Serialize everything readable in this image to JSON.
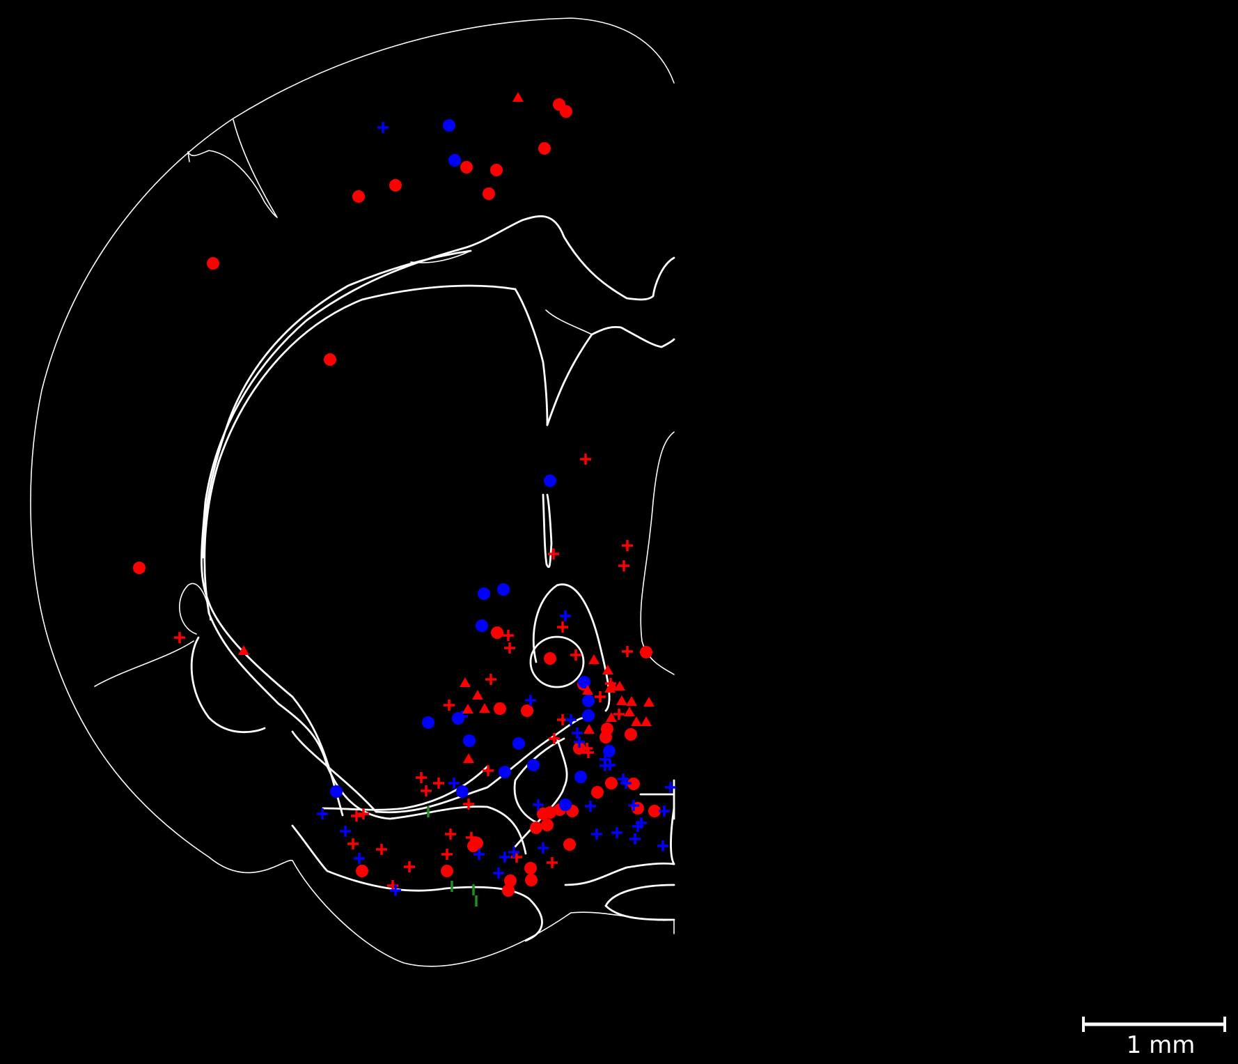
{
  "colors": {
    "background": "#000000",
    "outline": "#ffffff",
    "red": "#ff0000",
    "blue": "#0000ff",
    "green": "#1f8f1f"
  },
  "scale_bar": {
    "label": "1 mm",
    "length_mm": 1
  },
  "marker_shapes": [
    "circle",
    "plus",
    "triangle",
    "tick"
  ]
}
